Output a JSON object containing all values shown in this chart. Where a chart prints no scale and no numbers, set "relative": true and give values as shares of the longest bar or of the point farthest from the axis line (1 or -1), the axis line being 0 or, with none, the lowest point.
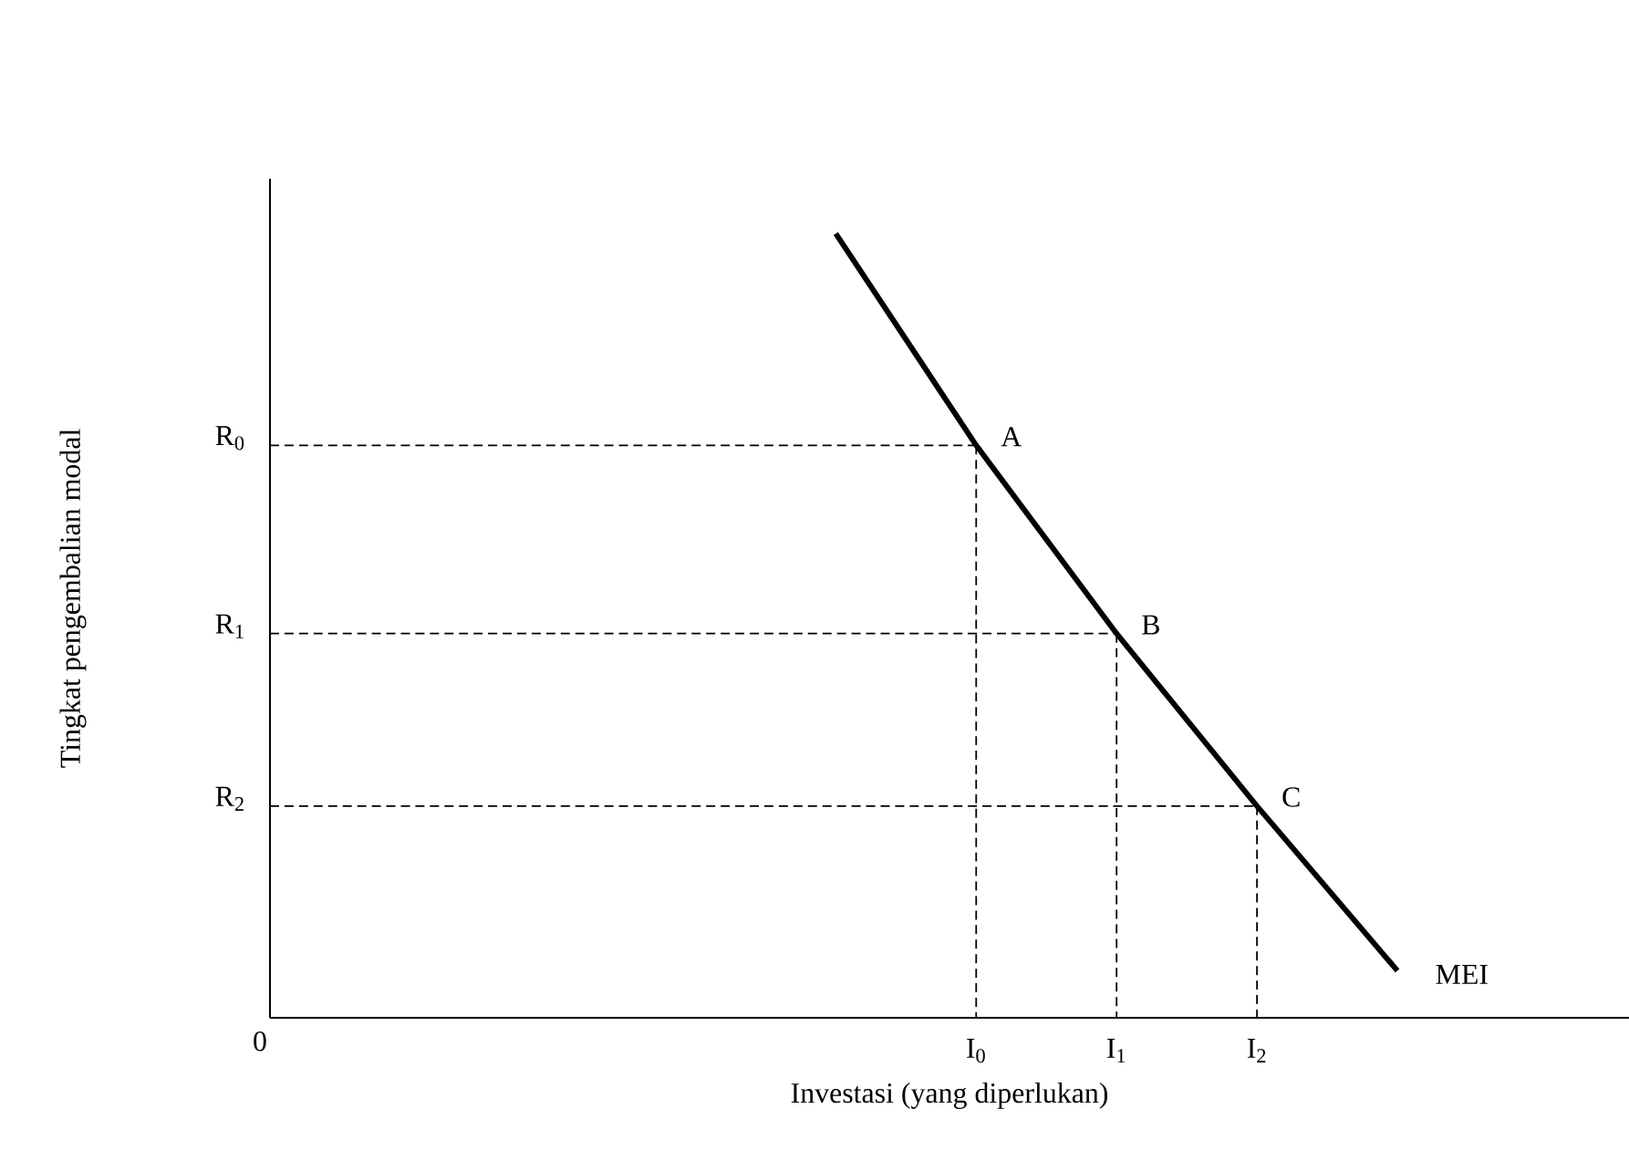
{
  "chart_data": {
    "type": "line",
    "relative": true,
    "xlabel": "Investasi (yang diperlukan)",
    "categories": [
      null,
      "I$_{0}$",
      "I$_{1}$",
      "I$_{2}$",
      null
    ],
    "series": [
      {
        "name": "MEI",
        "color": "#000000",
        "line_style": "solid",
        "values": [
          1,
          0.73,
          0.49,
          0.27,
          0.06
        ]
      }
    ],
    "ref_lines": [
      {
        "axis": "y",
        "value": 0.73,
        "label": "R$_{0}$",
        "color": "#000000",
        "line_style": "dashed"
      },
      {
        "axis": "y",
        "value": 0.49,
        "label": "R$_{1}$",
        "color": "#000000",
        "line_style": "dashed"
      },
      {
        "axis": "y",
        "value": 0.27,
        "label": "R$_{2}$",
        "color": "#000000",
        "line_style": "dashed"
      }
    ],
    "annotations": [
      {
        "text": "A",
        "x": "I$_{0}$",
        "y": 0.73
      },
      {
        "text": "B",
        "x": "I$_{1}$",
        "y": 0.49
      },
      {
        "text": "C",
        "x": "I$_{2}$",
        "y": 0.27
      },
      "0",
      "Tingkat pengembalian modal"
    ]
  }
}
